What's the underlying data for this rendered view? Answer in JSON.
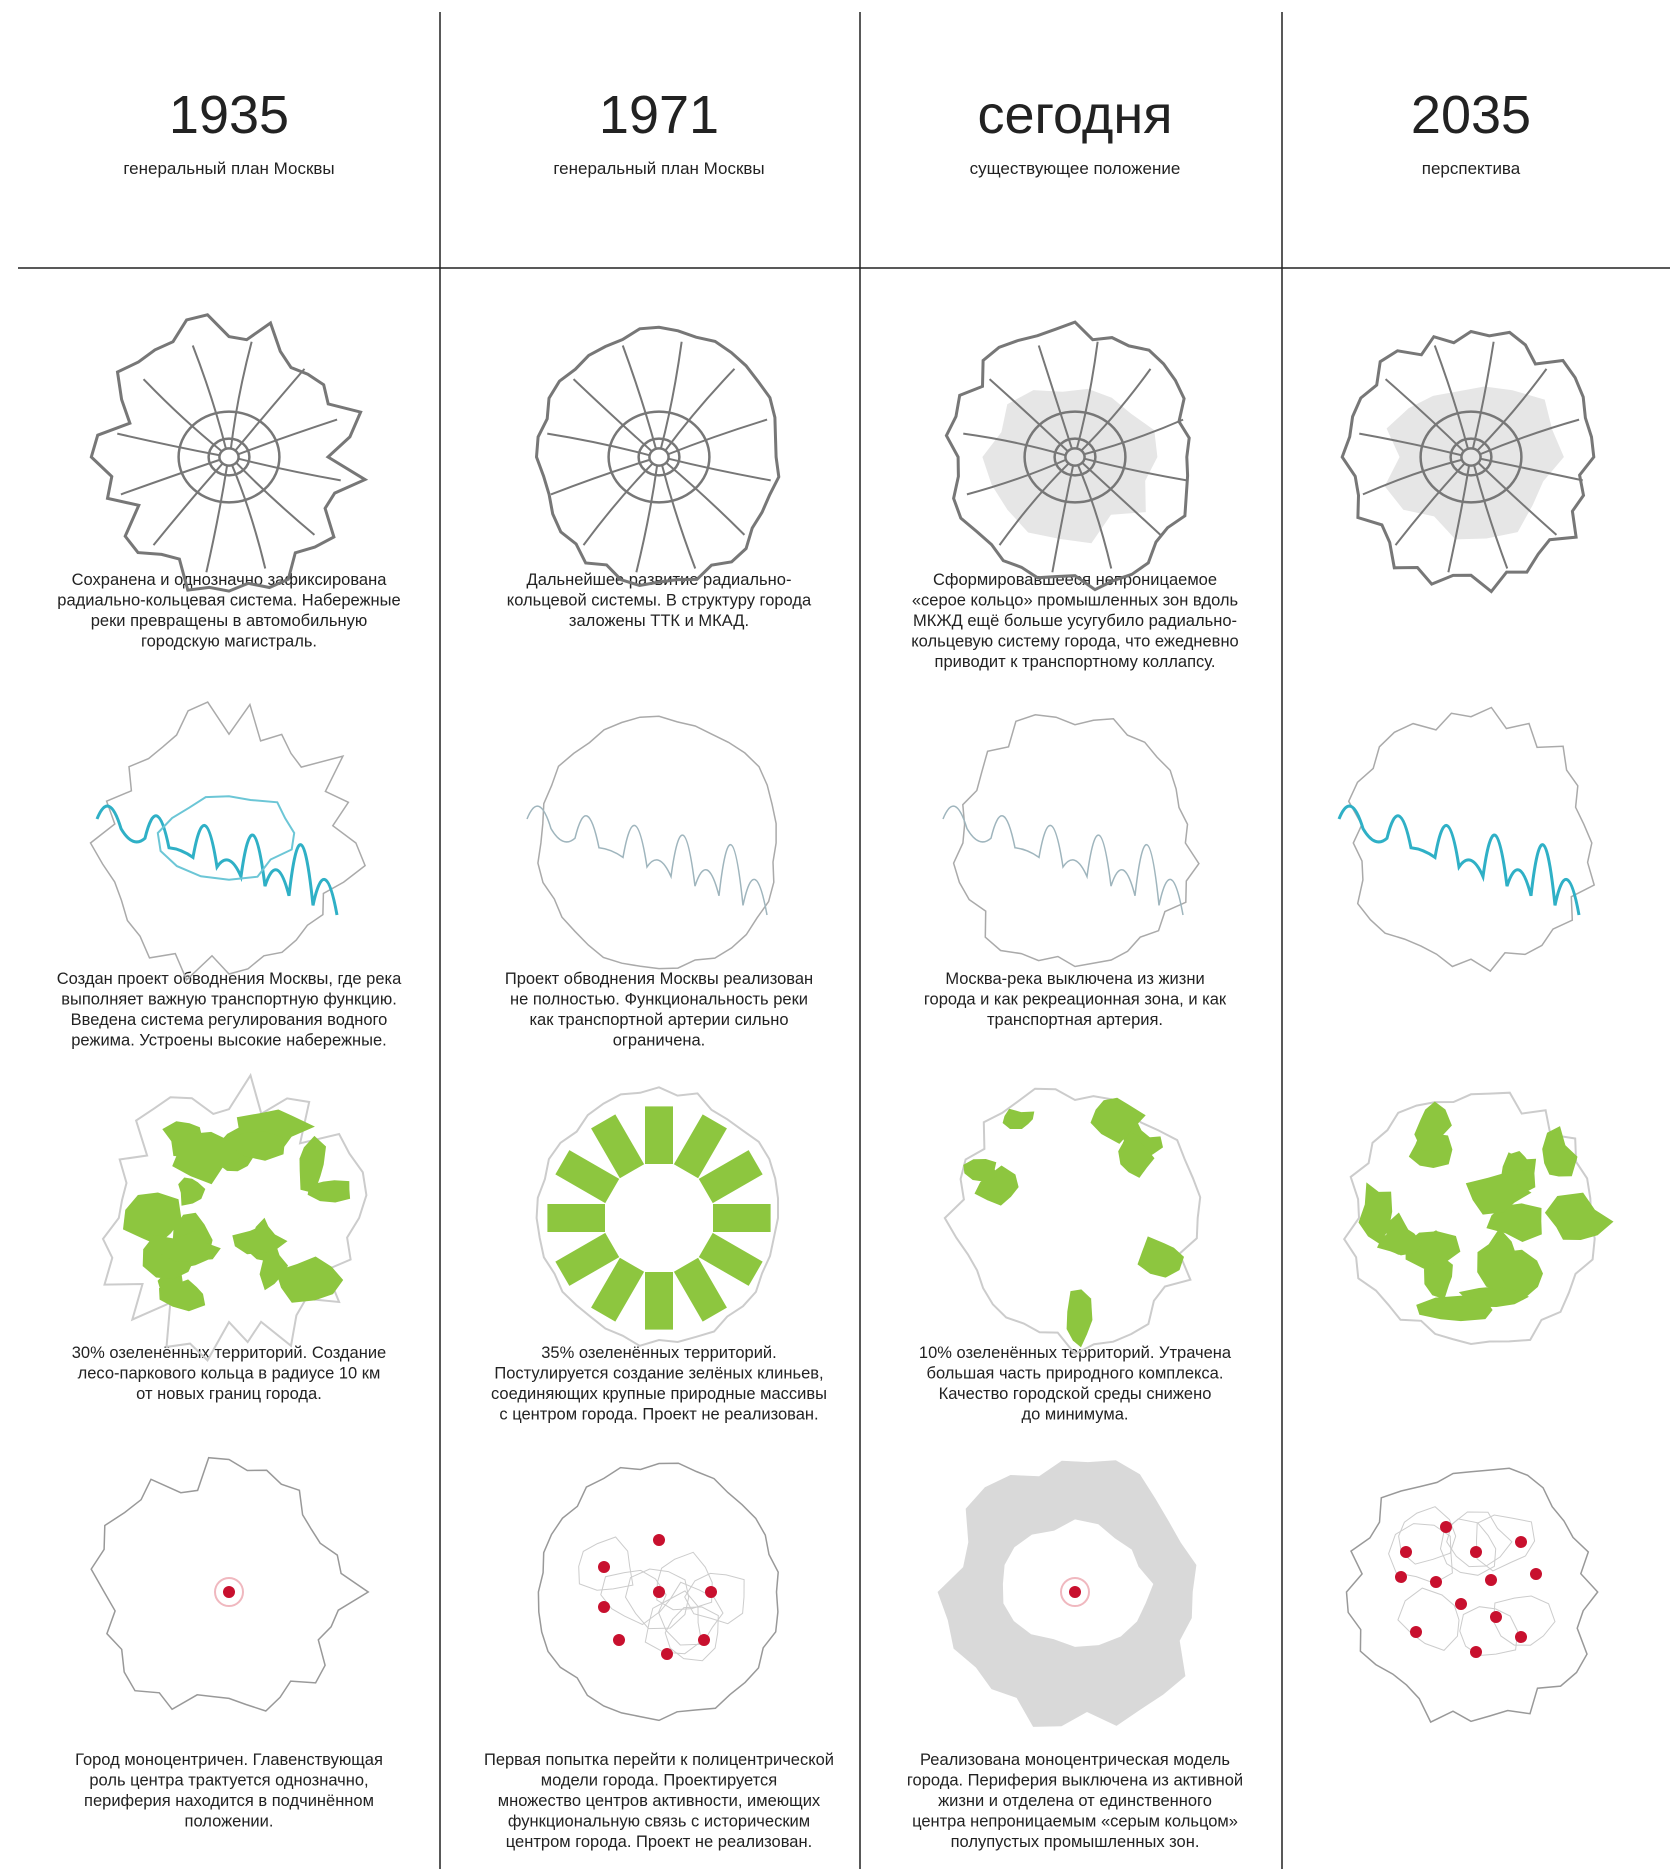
{
  "columns": [
    {
      "year": "1935",
      "subtitle": "генеральный план Москвы",
      "captions": [
        [
          "Сохранена и однозначно зафиксирована",
          "радиально-кольцевая система. Набережные",
          "реки превращены в автомобильную",
          "городскую магистраль."
        ],
        [
          "Создан проект обводнения Москвы, где река",
          "выполняет важную транспортную функцию.",
          "Введена система регулирования водного",
          "режима. Устроены высокие набережные."
        ],
        [
          "30% озеленённых территорий. Создание",
          "лесо-паркового кольца в радиусе 10 км",
          "от новых границ города."
        ],
        [
          "Город моноцентричен. Главенствующая",
          "роль центра трактуется однозначно,",
          "периферия находится в подчинённом",
          "положении."
        ]
      ]
    },
    {
      "year": "1971",
      "subtitle": "генеральный план Москвы",
      "captions": [
        [
          "Дальнейшее развитие радиально-",
          "кольцевой системы. В структуру города",
          "заложены ТТК и МКАД."
        ],
        [
          "Проект обводнения Москвы реализован",
          "не полностью. Функциональность реки",
          "как транспортной артерии сильно",
          "ограничена."
        ],
        [
          "35% озеленённых территорий.",
          "Постулируется создание зелёных клиньев,",
          "соединяющих крупные природные массивы",
          "с центром города. Проект не реализован."
        ],
        [
          "Первая попытка перейти к полицентрической",
          "модели города. Проектируется",
          "множество центров активности, имеющих",
          "функциональную связь с историческим",
          "центром города. Проект не реализован."
        ]
      ]
    },
    {
      "year": "сегодня",
      "subtitle": "существующее положение",
      "captions": [
        [
          "Сформировавшееся непроницаемое",
          "«серое кольцо» промышленных зон вдоль",
          "МКЖД ещё больше усугубило радиально-",
          "кольцевую систему города, что ежедневно",
          "приводит к транспортному коллапсу."
        ],
        [
          "Москва-река выключена из жизни",
          "города и как рекреационная зона, и как",
          "транспортная артерия."
        ],
        [
          "10% озеленённых территорий. Утрачена",
          "большая часть природного комплекса.",
          "Качество городской среды снижено",
          "до минимума."
        ],
        [
          "Реализована моноцентрическая модель",
          "города. Периферия выключена из активной",
          "жизни и отделена от единственного",
          "центра непроницаемым «серым кольцом»",
          "полупустых промышленных зон."
        ]
      ]
    },
    {
      "year": "2035",
      "subtitle": "перспектива",
      "captions": []
    }
  ]
}
